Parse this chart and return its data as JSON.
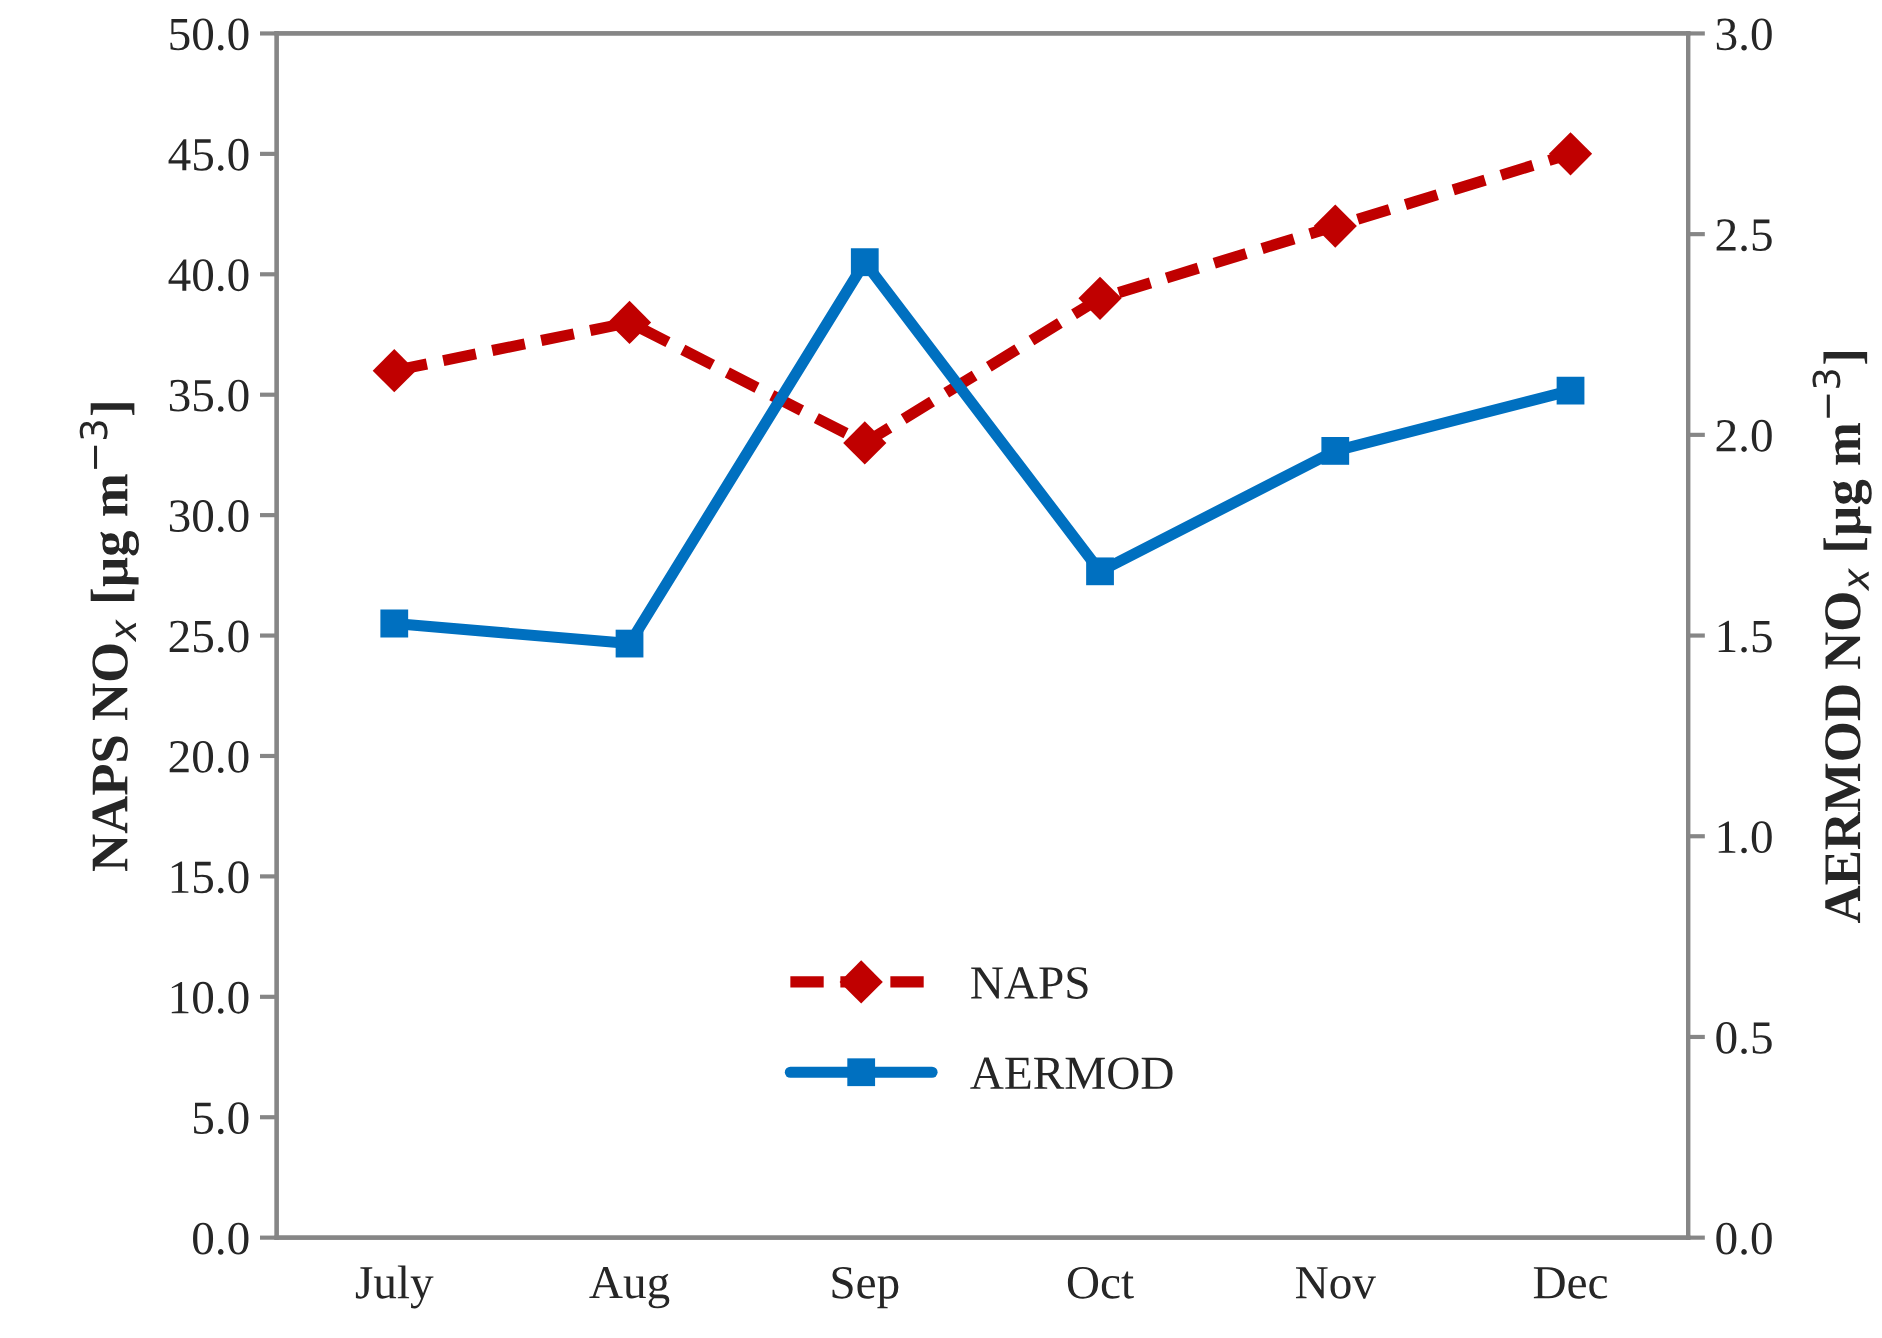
{
  "chart_data": {
    "type": "line",
    "categories": [
      "July",
      "Aug",
      "Sep",
      "Oct",
      "Nov",
      "Dec"
    ],
    "ylabel": "NAPS NO$_{x}$ [µg m$^{−3}$]",
    "y2label": "AERMOD NO$_{x}$ [µg m$^{−3}$]",
    "series": [
      {
        "name": "NAPS",
        "color": "#c00000",
        "values": [
          36,
          38,
          33,
          39,
          42,
          45
        ],
        "marker": "diamond",
        "line_style": "dashed"
      },
      {
        "name": "AERMOD",
        "color": "#0070c0",
        "values": [
          1.53,
          1.48,
          2.43,
          1.66,
          1.96,
          2.11
        ],
        "marker": "square",
        "line_style": "solid",
        "axis": "y2"
      }
    ],
    "ylim": [
      0,
      50
    ],
    "yticks": [
      {
        "value": 0,
        "label": "0.0"
      },
      {
        "value": 5,
        "label": "5.0"
      },
      {
        "value": 10,
        "label": "10.0"
      },
      {
        "value": 15,
        "label": "15.0"
      },
      {
        "value": 20,
        "label": "20.0"
      },
      {
        "value": 25,
        "label": "25.0"
      },
      {
        "value": 30,
        "label": "30.0"
      },
      {
        "value": 35,
        "label": "35.0"
      },
      {
        "value": 40,
        "label": "40.0"
      },
      {
        "value": 45,
        "label": "45.0"
      },
      {
        "value": 50,
        "label": "50.0"
      }
    ],
    "y2lim": [
      0,
      3
    ],
    "y2ticks": [
      {
        "value": 0,
        "label": "0.0"
      },
      {
        "value": 0.5,
        "label": "0.5"
      },
      {
        "value": 1,
        "label": "1.0"
      },
      {
        "value": 1.5,
        "label": "1.5"
      },
      {
        "value": 2,
        "label": "2.0"
      },
      {
        "value": 2.5,
        "label": "2.5"
      },
      {
        "value": 3,
        "label": "3.0"
      }
    ],
    "grid": false,
    "legend": "bottom"
  }
}
